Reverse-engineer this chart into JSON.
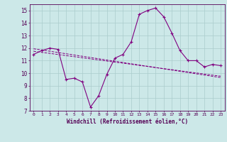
{
  "x": [
    0,
    1,
    2,
    3,
    4,
    5,
    6,
    7,
    8,
    9,
    10,
    11,
    12,
    13,
    14,
    15,
    16,
    17,
    18,
    19,
    20,
    21,
    22,
    23
  ],
  "y_main": [
    11.5,
    11.8,
    12.0,
    11.9,
    9.5,
    9.6,
    9.3,
    7.3,
    8.2,
    9.9,
    11.2,
    11.5,
    12.5,
    14.7,
    15.0,
    15.2,
    14.5,
    13.2,
    11.8,
    11.0,
    11.0,
    10.5,
    10.7,
    10.6
  ],
  "y_trend1": [
    11.95,
    11.85,
    11.75,
    11.65,
    11.55,
    11.45,
    11.35,
    11.25,
    11.15,
    11.05,
    10.95,
    10.85,
    10.75,
    10.65,
    10.55,
    10.45,
    10.35,
    10.25,
    10.15,
    10.05,
    9.95,
    9.85,
    9.75,
    9.65
  ],
  "y_trend2": [
    11.75,
    11.66,
    11.58,
    11.49,
    11.4,
    11.32,
    11.23,
    11.14,
    11.06,
    10.97,
    10.88,
    10.8,
    10.71,
    10.62,
    10.54,
    10.45,
    10.36,
    10.28,
    10.19,
    10.1,
    10.02,
    9.93,
    9.84,
    9.76
  ],
  "line_color": "#800080",
  "bg_color": "#cce8e8",
  "grid_color": "#aacccc",
  "ylim": [
    7,
    15.5
  ],
  "yticks": [
    7,
    8,
    9,
    10,
    11,
    12,
    13,
    14,
    15
  ],
  "xlabel": "Windchill (Refroidissement éolien,°C)",
  "xticks": [
    0,
    1,
    2,
    3,
    4,
    5,
    6,
    7,
    8,
    9,
    10,
    11,
    12,
    13,
    14,
    15,
    16,
    17,
    18,
    19,
    20,
    21,
    22,
    23
  ]
}
